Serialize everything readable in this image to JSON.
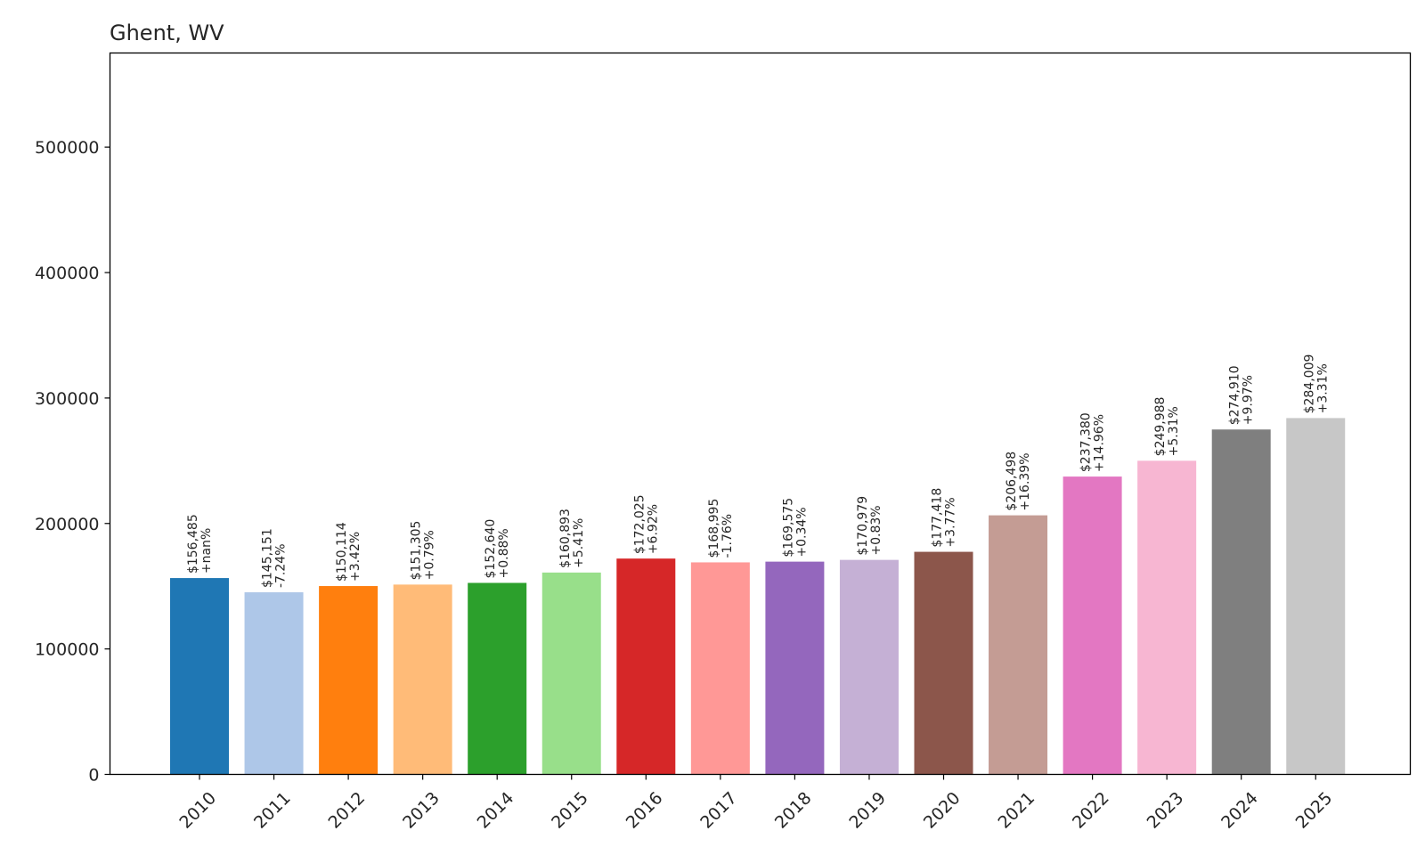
{
  "chart_data": {
    "type": "bar",
    "title": "Ghent, WV",
    "xlabel": "",
    "ylabel": "",
    "ylim": [
      0,
      575000
    ],
    "yticks": [
      0,
      100000,
      200000,
      300000,
      400000,
      500000
    ],
    "grid": false,
    "categories": [
      "2010",
      "2011",
      "2012",
      "2013",
      "2014",
      "2015",
      "2016",
      "2017",
      "2018",
      "2019",
      "2020",
      "2021",
      "2022",
      "2023",
      "2024",
      "2025"
    ],
    "values": [
      156485,
      145151,
      150114,
      151305,
      152640,
      160893,
      172025,
      168995,
      169575,
      170979,
      177418,
      206498,
      237380,
      249988,
      274910,
      284009
    ],
    "value_labels": [
      "$156,485",
      "$145,151",
      "$150,114",
      "$151,305",
      "$152,640",
      "$160,893",
      "$172,025",
      "$168,995",
      "$169,575",
      "$170,979",
      "$177,418",
      "$206,498",
      "$237,380",
      "$249,988",
      "$274,910",
      "$284,009"
    ],
    "change_labels": [
      "+nan%",
      "-7.24%",
      "+3.42%",
      "+0.79%",
      "+0.88%",
      "+5.41%",
      "+6.92%",
      "-1.76%",
      "+0.34%",
      "+0.83%",
      "+3.77%",
      "+16.39%",
      "+14.96%",
      "+5.31%",
      "+9.97%",
      "+3.31%"
    ],
    "colors": [
      "#1f77b4",
      "#aec7e8",
      "#ff7f0e",
      "#ffbb78",
      "#2ca02c",
      "#98df8a",
      "#d62728",
      "#ff9896",
      "#9467bd",
      "#c5b0d5",
      "#8c564b",
      "#c49c94",
      "#e377c2",
      "#f7b6d2",
      "#7f7f7f",
      "#c7c7c7"
    ]
  }
}
